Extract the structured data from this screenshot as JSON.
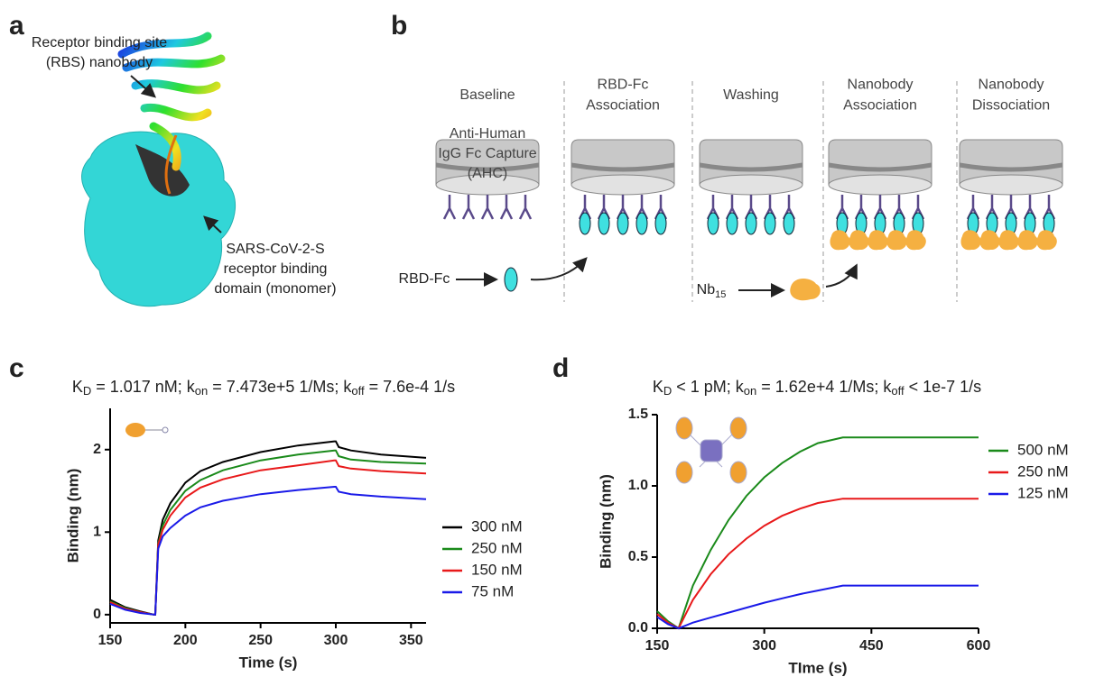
{
  "panel_labels": [
    "a",
    "b",
    "c",
    "d"
  ],
  "panel_a": {
    "nanobody_label": [
      "Receptor binding site",
      "(RBS) nanobody"
    ],
    "domain_label": [
      "SARS-CoV-2-S",
      "receptor binding",
      "domain (monomer)"
    ]
  },
  "panel_b": {
    "steps": [
      [
        "Baseline"
      ],
      [
        "RBD-Fc",
        "Association"
      ],
      [
        "Washing"
      ],
      [
        "Nanobody",
        "Association"
      ],
      [
        "Nanobody",
        "Dissociation"
      ]
    ],
    "sensor_label": [
      "Anti-Human",
      "IgG Fc Capture",
      "(AHC)"
    ],
    "rbd_label": "RBD-Fc",
    "nb_label": [
      "Nb",
      "15"
    ]
  },
  "chart_data": [
    {
      "type": "line",
      "title_parts": [
        "K",
        "D",
        " = 1.017 nM; k",
        "on",
        " = 7.473e+5 1/Ms; k",
        "off",
        " = 7.6e-4 1/s"
      ],
      "x_label": "Time (s)",
      "y_label": "Binding (nm)",
      "x": [
        150,
        160,
        170,
        179,
        180,
        182,
        185,
        190,
        200,
        210,
        225,
        250,
        275,
        299,
        300,
        302,
        310,
        330,
        360
      ],
      "xlim": [
        150,
        360
      ],
      "xticks": [
        150,
        200,
        250,
        300,
        350
      ],
      "ylim": [
        -0.1,
        2.5
      ],
      "yticks": [
        0,
        1,
        2
      ],
      "series": [
        {
          "name": "300 nM",
          "color": "#000000",
          "values": [
            0.18,
            0.09,
            0.04,
            0.0,
            0.0,
            0.9,
            1.15,
            1.35,
            1.6,
            1.74,
            1.85,
            1.97,
            2.05,
            2.1,
            2.1,
            2.03,
            1.99,
            1.94,
            1.9
          ]
        },
        {
          "name": "250 nM",
          "color": "#1a8a1a",
          "values": [
            0.16,
            0.08,
            0.03,
            0.0,
            0.0,
            0.86,
            1.08,
            1.27,
            1.5,
            1.63,
            1.75,
            1.87,
            1.94,
            1.99,
            1.99,
            1.92,
            1.88,
            1.85,
            1.83
          ]
        },
        {
          "name": "150 nM",
          "color": "#e8191a",
          "values": [
            0.15,
            0.07,
            0.03,
            0.0,
            0.0,
            0.85,
            1.03,
            1.2,
            1.42,
            1.54,
            1.64,
            1.75,
            1.81,
            1.87,
            1.87,
            1.8,
            1.77,
            1.74,
            1.71
          ]
        },
        {
          "name": "75 nM",
          "color": "#1a1ae8",
          "values": [
            0.13,
            0.06,
            0.02,
            0.0,
            0.0,
            0.8,
            0.95,
            1.05,
            1.2,
            1.3,
            1.38,
            1.46,
            1.51,
            1.55,
            1.55,
            1.49,
            1.46,
            1.43,
            1.4
          ]
        }
      ]
    },
    {
      "type": "line",
      "title_parts": [
        "K",
        "D",
        " < 1 pM; k",
        "on",
        " = 1.62e+4 1/Ms; k",
        "off",
        " < 1e-7 1/s"
      ],
      "x_label": "TIme (s)",
      "y_label": "Binding (nm)",
      "x": [
        150,
        165,
        180,
        200,
        225,
        250,
        275,
        300,
        325,
        350,
        375,
        410,
        450,
        500,
        600
      ],
      "xlim": [
        150,
        600
      ],
      "xticks": [
        150,
        300,
        450,
        600
      ],
      "ylim": [
        0,
        1.5
      ],
      "yticks": [
        {
          "value": 0,
          "label": "0.0"
        },
        0.5,
        {
          "value": 1,
          "label": "1.0"
        },
        1.5
      ],
      "series": [
        {
          "name": "500 nM",
          "color": "#1a8a1a",
          "values": [
            0.12,
            0.05,
            0,
            0.3,
            0.55,
            0.76,
            0.93,
            1.06,
            1.16,
            1.24,
            1.3,
            1.34,
            1.34,
            1.34,
            1.34
          ]
        },
        {
          "name": "250 nM",
          "color": "#e8191a",
          "values": [
            0.1,
            0.04,
            0,
            0.2,
            0.38,
            0.52,
            0.63,
            0.72,
            0.79,
            0.84,
            0.88,
            0.91,
            0.91,
            0.91,
            0.91
          ]
        },
        {
          "name": "125 nM",
          "color": "#1a1ae8",
          "values": [
            0.08,
            0.03,
            0,
            0.04,
            0.075,
            0.11,
            0.145,
            0.18,
            0.21,
            0.24,
            0.265,
            0.3,
            0.3,
            0.3,
            0.3
          ]
        }
      ]
    }
  ]
}
